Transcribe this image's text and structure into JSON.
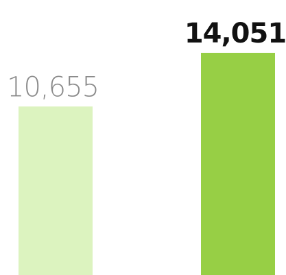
{
  "chart_data": {
    "type": "bar",
    "categories": [
      null,
      null
    ],
    "values": [
      10655,
      14051
    ],
    "value_labels": [
      "10,655",
      "14,051"
    ],
    "colors": [
      "#dcf3bf",
      "#97cf45"
    ]
  }
}
